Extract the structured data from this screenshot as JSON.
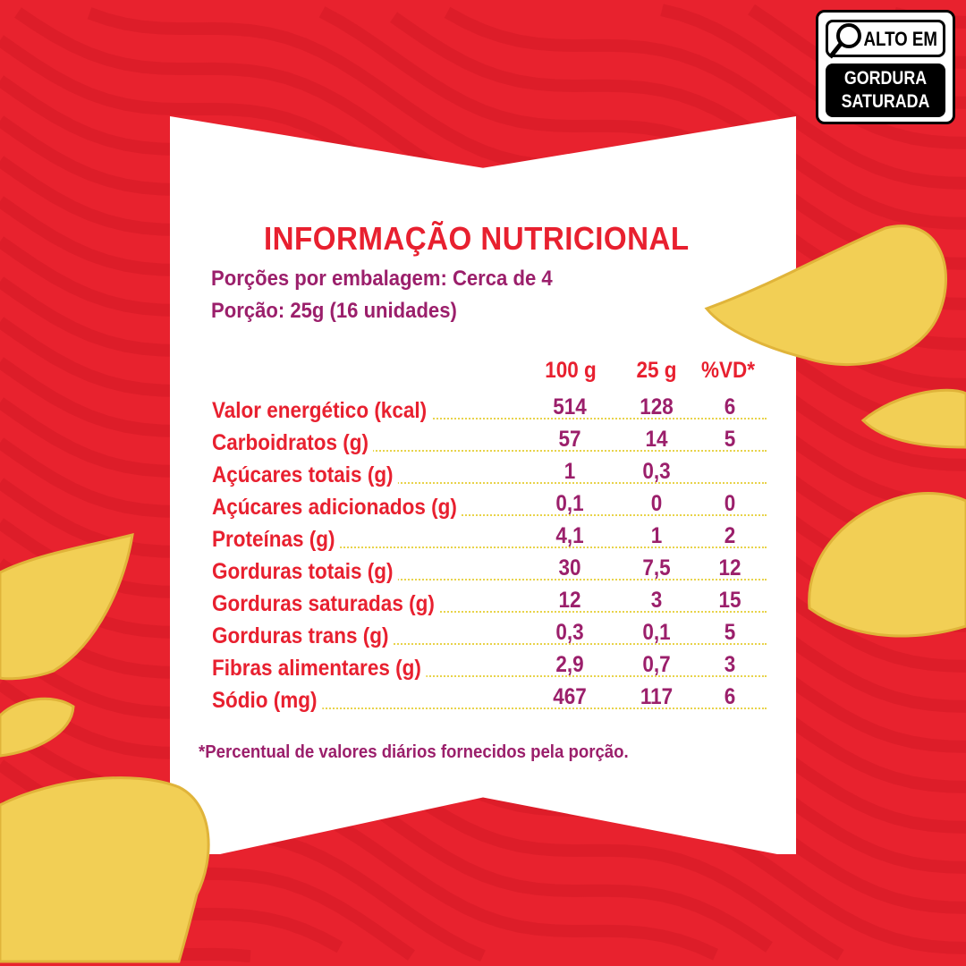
{
  "colors": {
    "background": "#e8222e",
    "label": "#e8202f",
    "value": "#9b1f6b",
    "chip": "#f2cf55"
  },
  "badge": {
    "icon": "magnifier-icon",
    "line1": "ALTO EM",
    "line2": "GORDURA",
    "line3": "SATURADA"
  },
  "title": "INFORMAÇÃO NUTRICIONAL",
  "servings_per_package": "Porções por embalagem: Cerca de 4",
  "serving": "Porção: 25g (16 unidades)",
  "columns": [
    "100 g",
    "25 g",
    "%VD*"
  ],
  "rows": [
    {
      "label": "Valor energético (kcal)",
      "per100": "514",
      "per25": "128",
      "vd": "6"
    },
    {
      "label": "Carboidratos (g)",
      "per100": "57",
      "per25": "14",
      "vd": "5"
    },
    {
      "label": "Açúcares totais (g)",
      "per100": "1",
      "per25": "0,3",
      "vd": ""
    },
    {
      "label": "Açúcares adicionados (g)",
      "per100": "0,1",
      "per25": "0",
      "vd": "0"
    },
    {
      "label": "Proteínas (g)",
      "per100": "4,1",
      "per25": "1",
      "vd": "2"
    },
    {
      "label": "Gorduras totais (g)",
      "per100": "30",
      "per25": "7,5",
      "vd": "12"
    },
    {
      "label": "Gorduras saturadas (g)",
      "per100": "12",
      "per25": "3",
      "vd": "15"
    },
    {
      "label": "Gorduras trans (g)",
      "per100": "0,3",
      "per25": "0,1",
      "vd": "5"
    },
    {
      "label": "Fibras alimentares (g)",
      "per100": "2,9",
      "per25": "0,7",
      "vd": "3"
    },
    {
      "label": "Sódio (mg)",
      "per100": "467",
      "per25": "117",
      "vd": "6"
    }
  ],
  "footnote": "*Percentual de valores diários fornecidos pela porção."
}
